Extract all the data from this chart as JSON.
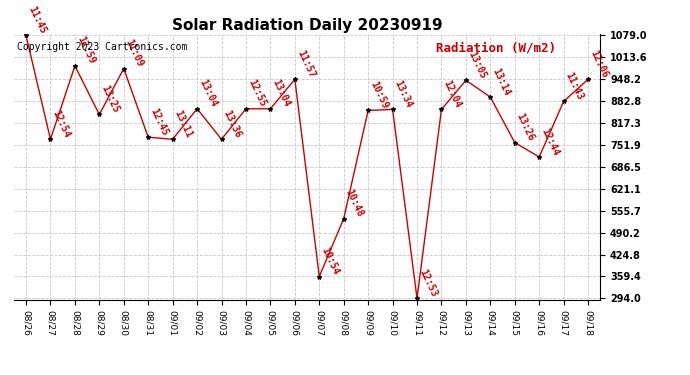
{
  "title": "Solar Radiation Daily 20230919",
  "ylabel_text": "Radiation (W/m2)",
  "copyright": "Copyright 2023 Cartronics.com",
  "background_color": "#ffffff",
  "plot_bg_color": "#ffffff",
  "grid_color": "#c8c8c8",
  "line_color": "#cc0000",
  "marker_color": "#000000",
  "label_color": "#cc0000",
  "x_labels": [
    "08/26",
    "08/27",
    "08/28",
    "08/29",
    "08/30",
    "08/31",
    "09/01",
    "09/02",
    "09/03",
    "09/04",
    "09/05",
    "09/06",
    "09/07",
    "09/08",
    "09/09",
    "09/10",
    "09/11",
    "09/12",
    "09/13",
    "09/14",
    "09/15",
    "09/16",
    "09/17",
    "09/18"
  ],
  "y_values": [
    1079.0,
    769.0,
    988.0,
    843.0,
    980.0,
    775.0,
    769.0,
    860.0,
    769.0,
    860.0,
    860.0,
    948.0,
    359.0,
    532.0,
    855.0,
    858.0,
    294.0,
    858.0,
    945.0,
    895.0,
    759.0,
    716.0,
    882.0,
    948.0
  ],
  "point_labels": [
    "11:45",
    "12:54",
    "12:59",
    "13:25",
    "11:09",
    "12:45",
    "13:11",
    "13:04",
    "13:36",
    "12:55",
    "13:04",
    "11:57",
    "10:54",
    "10:48",
    "10:59",
    "13:34",
    "12:53",
    "12:04",
    "13:05",
    "13:14",
    "13:26",
    "12:44",
    "11:43",
    "12:06"
  ],
  "ylim_min": 294.0,
  "ylim_max": 1079.0,
  "ytick_values": [
    294.0,
    359.4,
    424.8,
    490.2,
    555.7,
    621.1,
    686.5,
    751.9,
    817.3,
    882.8,
    948.2,
    1013.6,
    1079.0
  ],
  "title_fontsize": 11,
  "point_label_fontsize": 7,
  "ylabel_fontsize": 9,
  "copyright_fontsize": 7,
  "tick_fontsize": 7,
  "xtick_fontsize": 6.5
}
